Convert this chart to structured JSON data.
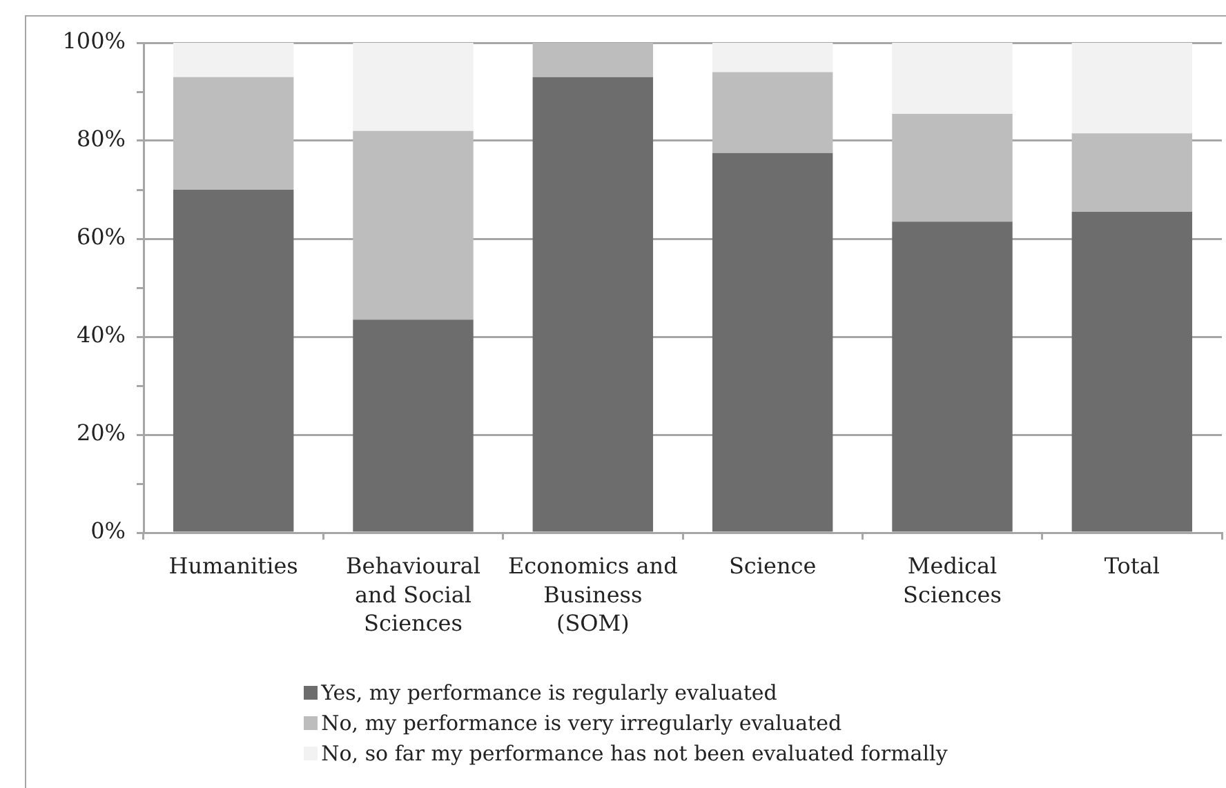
{
  "chart_data": {
    "type": "bar",
    "stacked": true,
    "categories": [
      "Humanities",
      "Behavioural and Social Sciences",
      "Economics and Business (SOM)",
      "Science",
      "Medical Sciences",
      "Total"
    ],
    "series": [
      {
        "name": "Yes, my performance is regularly evaluated",
        "color": "#6d6d6d",
        "values": [
          70,
          43.5,
          93,
          77.5,
          63.5,
          65.5
        ]
      },
      {
        "name": "No, my performance is very irregularly evaluated",
        "color": "#bdbdbd",
        "values": [
          23,
          38.5,
          7,
          16.5,
          22,
          16
        ]
      },
      {
        "name": "No, so far my performance has not been evaluated formally",
        "color": "#f2f2f2",
        "values": [
          7,
          18,
          0,
          6,
          14.5,
          18.5
        ]
      }
    ],
    "ylim": [
      0,
      100
    ],
    "yticks": [
      {
        "value": 0,
        "label": "0%"
      },
      {
        "value": 10,
        "label": null
      },
      {
        "value": 20,
        "label": "20%"
      },
      {
        "value": 30,
        "label": null
      },
      {
        "value": 40,
        "label": "40%"
      },
      {
        "value": 50,
        "label": null
      },
      {
        "value": 60,
        "label": "60%"
      },
      {
        "value": 70,
        "label": null
      },
      {
        "value": 80,
        "label": "80%"
      },
      {
        "value": 90,
        "label": null
      },
      {
        "value": 100,
        "label": "100%"
      }
    ],
    "grid": "y",
    "legend": "bottom"
  }
}
